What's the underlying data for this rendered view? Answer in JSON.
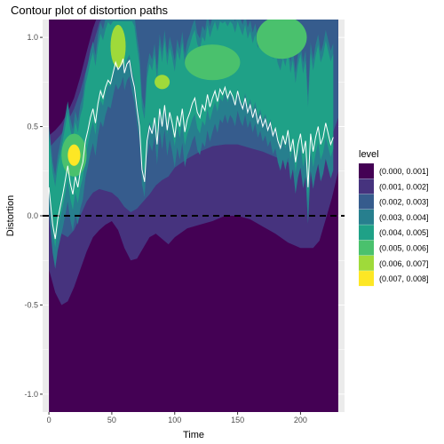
{
  "chart_data": {
    "type": "contour",
    "title": "Contour plot of distortion paths",
    "xlabel": "Time",
    "ylabel": "Distortion",
    "xlim": [
      -5,
      235
    ],
    "ylim": [
      -1.1,
      1.1
    ],
    "x_ticks": [
      0,
      50,
      100,
      150,
      200
    ],
    "y_ticks": [
      -1.0,
      -0.5,
      0.0,
      0.5,
      1.0
    ],
    "x_tick_labels": [
      "0",
      "50",
      "100",
      "150",
      "200"
    ],
    "y_tick_labels": [
      "-1.0",
      "-0.5",
      "0.0",
      "0.5",
      "1.0"
    ],
    "grid": true,
    "background": "#ebebeb",
    "legend": {
      "title": "level",
      "position": "right",
      "entries": [
        {
          "label": "(0.000, 0.001]",
          "color": "#440154"
        },
        {
          "label": "(0.001, 0.002]",
          "color": "#46337E"
        },
        {
          "label": "(0.002, 0.003]",
          "color": "#365C8D"
        },
        {
          "label": "(0.003, 0.004]",
          "color": "#277F8E"
        },
        {
          "label": "(0.004, 0.005]",
          "color": "#1FA187"
        },
        {
          "label": "(0.005, 0.006]",
          "color": "#4AC16D"
        },
        {
          "label": "(0.006, 0.007]",
          "color": "#9FDA3A"
        },
        {
          "label": "(0.007, 0.008]",
          "color": "#FDE725"
        }
      ]
    },
    "reference_line": {
      "y": 0.0,
      "style": "dashed",
      "color": "#000000"
    },
    "density_x_range": [
      0,
      230
    ],
    "band_edges": {
      "x": [
        0,
        5,
        10,
        15,
        20,
        25,
        30,
        35,
        40,
        45,
        50,
        55,
        60,
        65,
        70,
        75,
        80,
        85,
        90,
        95,
        100,
        110,
        120,
        130,
        140,
        150,
        160,
        170,
        180,
        190,
        200,
        210,
        215,
        220,
        225,
        230
      ],
      "level1_top": [
        0.45,
        0.48,
        0.52,
        0.58,
        0.66,
        0.78,
        0.92,
        1.05,
        1.15,
        1.15,
        1.15,
        1.15,
        1.15,
        1.15,
        1.15,
        1.15,
        1.15,
        1.15,
        1.15,
        1.15,
        1.15,
        1.15,
        1.15,
        1.15,
        1.15,
        1.15,
        1.15,
        1.15,
        1.15,
        1.15,
        1.15,
        1.15,
        1.15,
        1.15,
        1.15,
        1.15
      ],
      "level1_bottom": [
        -0.3,
        -0.43,
        -0.5,
        -0.48,
        -0.4,
        -0.3,
        -0.2,
        -0.12,
        -0.08,
        -0.05,
        -0.03,
        -0.08,
        -0.18,
        -0.25,
        -0.24,
        -0.18,
        -0.12,
        -0.1,
        -0.13,
        -0.16,
        -0.12,
        -0.07,
        -0.05,
        -0.03,
        0.0,
        0.0,
        -0.02,
        -0.06,
        -0.1,
        -0.15,
        -0.18,
        -0.18,
        -0.14,
        -0.02,
        0.1,
        0.25
      ],
      "level2_top": [
        0.38,
        0.42,
        0.46,
        0.53,
        0.6,
        0.7,
        0.83,
        0.96,
        1.08,
        1.15,
        1.15,
        1.15,
        1.15,
        1.15,
        1.15,
        1.15,
        1.15,
        1.15,
        1.15,
        1.15,
        1.15,
        1.15,
        1.15,
        1.15,
        1.15,
        1.15,
        1.15,
        1.15,
        1.15,
        1.15,
        1.15,
        1.15,
        1.15,
        1.15,
        1.15,
        1.15
      ],
      "level2_bottom": [
        0.08,
        -0.02,
        -0.1,
        -0.12,
        -0.08,
        0.0,
        0.08,
        0.13,
        0.15,
        0.14,
        0.13,
        0.1,
        0.05,
        0.02,
        0.04,
        0.08,
        0.12,
        0.17,
        0.2,
        0.22,
        0.27,
        0.32,
        0.36,
        0.39,
        0.4,
        0.4,
        0.38,
        0.36,
        0.33,
        0.3,
        0.28,
        0.29,
        0.32,
        0.38,
        0.45,
        0.55
      ]
    },
    "hotspots": [
      {
        "x": 20,
        "y": 0.34,
        "rx": 5,
        "ry": 0.06,
        "level": 8
      },
      {
        "x": 20,
        "y": 0.34,
        "rx": 10,
        "ry": 0.12,
        "level": 6
      },
      {
        "x": 55,
        "y": 0.95,
        "rx": 6,
        "ry": 0.12,
        "level": 7
      },
      {
        "x": 90,
        "y": 0.75,
        "rx": 6,
        "ry": 0.04,
        "level": 7
      },
      {
        "x": 130,
        "y": 0.86,
        "rx": 22,
        "ry": 0.1,
        "level": 6
      },
      {
        "x": 185,
        "y": 1.0,
        "rx": 20,
        "ry": 0.12,
        "level": 6
      }
    ],
    "series": [
      {
        "name": "",
        "color": "#ffffff",
        "x": [
          0,
          3,
          5,
          7,
          9,
          11,
          13,
          15,
          17,
          19,
          21,
          23,
          25,
          27,
          29,
          31,
          33,
          35,
          37,
          39,
          41,
          43,
          45,
          47,
          49,
          51,
          53,
          55,
          57,
          59,
          60,
          62,
          64,
          66,
          68,
          70,
          72,
          74,
          76,
          78,
          80,
          82,
          84,
          86,
          88,
          90,
          92,
          94,
          96,
          98,
          100,
          102,
          104,
          106,
          108,
          110,
          112,
          114,
          116,
          118,
          120,
          122,
          124,
          126,
          128,
          130,
          132,
          134,
          136,
          138,
          140,
          142,
          144,
          146,
          148,
          150,
          152,
          154,
          156,
          158,
          160,
          162,
          164,
          166,
          168,
          170,
          172,
          174,
          176,
          178,
          180,
          182,
          184,
          186,
          188,
          190,
          192,
          194,
          196,
          198,
          200,
          202,
          204,
          206,
          208,
          210,
          212,
          214,
          216,
          218,
          220,
          222,
          224,
          226
        ],
        "y": [
          0.16,
          -0.05,
          -0.13,
          -0.02,
          0.05,
          0.12,
          0.2,
          0.28,
          0.18,
          0.12,
          0.22,
          0.16,
          0.25,
          0.3,
          0.42,
          0.48,
          0.55,
          0.6,
          0.52,
          0.63,
          0.7,
          0.66,
          0.72,
          0.76,
          0.74,
          0.8,
          0.86,
          0.82,
          0.84,
          0.88,
          0.8,
          0.85,
          0.87,
          0.78,
          0.72,
          0.6,
          0.5,
          0.26,
          0.19,
          0.42,
          0.5,
          0.46,
          0.55,
          0.4,
          0.6,
          0.5,
          0.62,
          0.48,
          0.58,
          0.52,
          0.44,
          0.56,
          0.5,
          0.6,
          0.47,
          0.54,
          0.58,
          0.63,
          0.66,
          0.58,
          0.55,
          0.62,
          0.59,
          0.68,
          0.61,
          0.66,
          0.7,
          0.64,
          0.71,
          0.68,
          0.72,
          0.66,
          0.7,
          0.67,
          0.62,
          0.7,
          0.64,
          0.6,
          0.66,
          0.58,
          0.62,
          0.55,
          0.6,
          0.52,
          0.56,
          0.5,
          0.54,
          0.48,
          0.52,
          0.45,
          0.49,
          0.42,
          0.38,
          0.45,
          0.4,
          0.48,
          0.36,
          0.43,
          0.3,
          0.4,
          0.46,
          0.35,
          0.42,
          0.16,
          0.46,
          0.36,
          0.44,
          0.5,
          0.4,
          0.44,
          0.52,
          0.46,
          0.4,
          0.44
        ]
      }
    ]
  }
}
